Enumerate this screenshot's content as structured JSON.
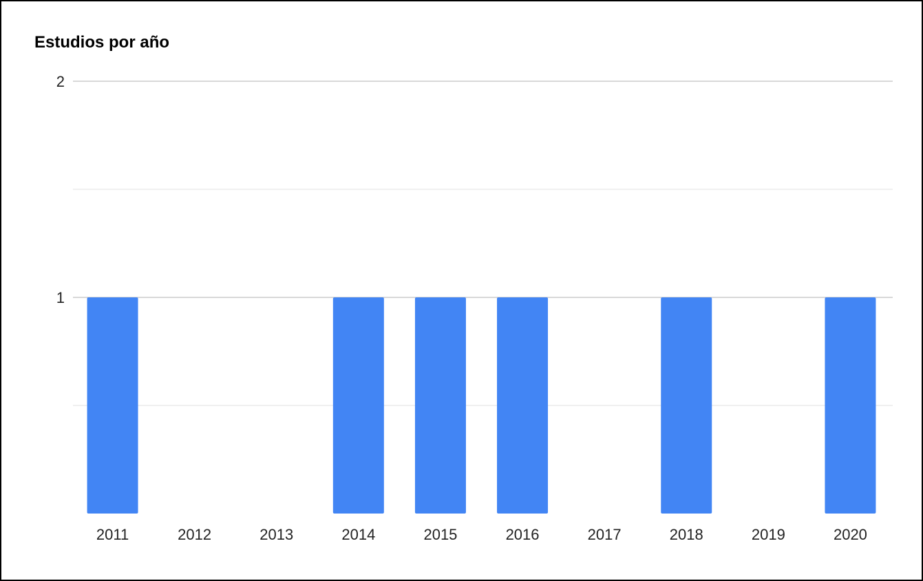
{
  "chart_data": {
    "type": "bar",
    "title": "Estudios por año",
    "xlabel": "",
    "ylabel": "",
    "categories": [
      "2011",
      "2012",
      "2013",
      "2014",
      "2015",
      "2016",
      "2017",
      "2018",
      "2019",
      "2020"
    ],
    "values": [
      1,
      0,
      0,
      1,
      1,
      1,
      0,
      1,
      0,
      1
    ],
    "ylim": [
      0,
      2
    ],
    "yticks": [
      1,
      2
    ],
    "ytick_labels": [
      "1",
      "2"
    ],
    "minor_gridlines": [
      0.5,
      1.5
    ],
    "grid": true,
    "legend": "none",
    "colors": {
      "bar": "#4285f4",
      "major_grid": "#cccccc",
      "minor_grid": "#ebebeb",
      "text": "#222222"
    }
  }
}
